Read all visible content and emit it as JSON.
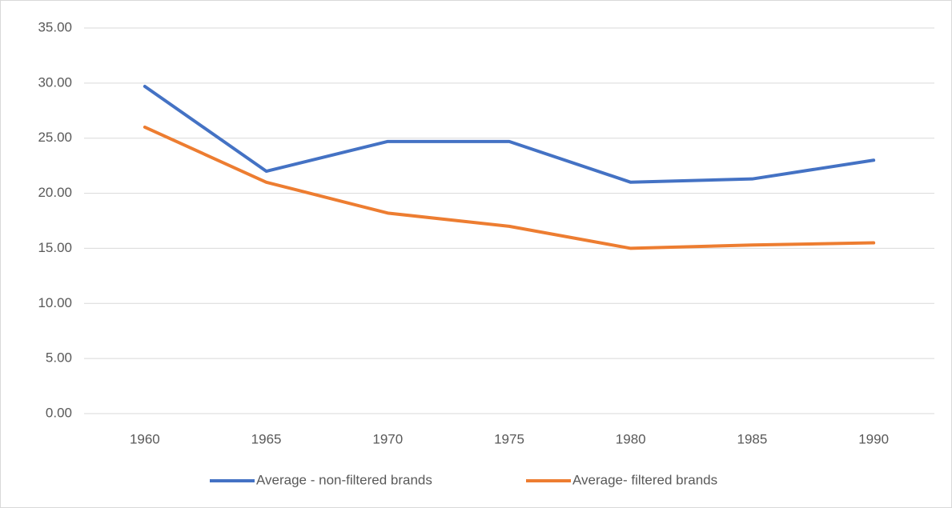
{
  "chart_data": {
    "type": "line",
    "categories": [
      "1960",
      "1965",
      "1970",
      "1975",
      "1980",
      "1985",
      "1990"
    ],
    "series": [
      {
        "name": "Average - non-filtered brands",
        "color": "#4472c4",
        "values": [
          29.7,
          22.0,
          24.7,
          24.7,
          21.0,
          21.3,
          23.0
        ]
      },
      {
        "name": "Average- filtered brands",
        "color": "#ed7d31",
        "values": [
          26.0,
          21.0,
          18.2,
          17.0,
          15.0,
          15.3,
          15.5
        ]
      }
    ],
    "ylim": [
      0,
      35
    ],
    "yticks": [
      {
        "value": 0,
        "label": "0.00"
      },
      {
        "value": 5,
        "label": "5.00"
      },
      {
        "value": 10,
        "label": "10.00"
      },
      {
        "value": 15,
        "label": "15.00"
      },
      {
        "value": 20,
        "label": "20.00"
      },
      {
        "value": 25,
        "label": "25.00"
      },
      {
        "value": 30,
        "label": "30.00"
      },
      {
        "value": 35,
        "label": "35.00"
      }
    ],
    "grid": true,
    "legend": "bottom"
  }
}
